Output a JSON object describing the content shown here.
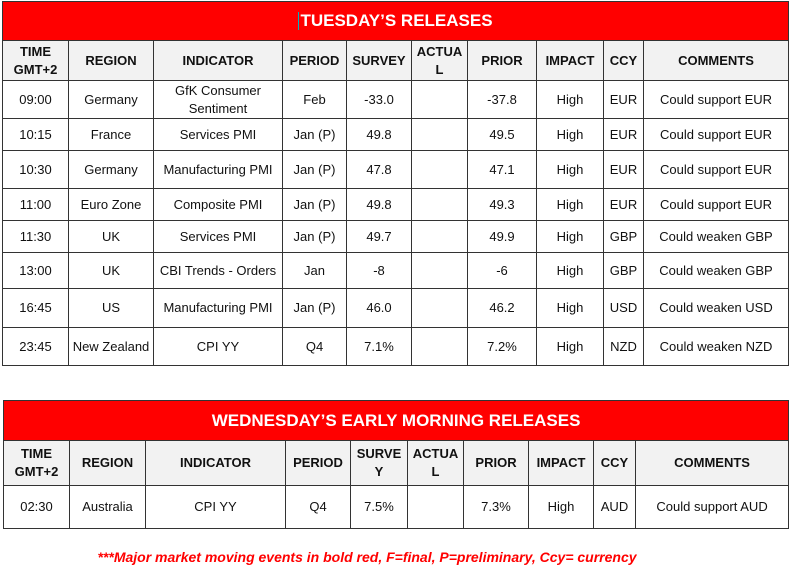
{
  "tuesday": {
    "title": "TUESDAY’S RELEASES",
    "headers": [
      "TIME GMT+2",
      "REGION",
      "INDICATOR",
      "PERIOD",
      "SURVEY",
      "ACTUAL",
      "PRIOR",
      "IMPACT",
      "CCY",
      "COMMENTS"
    ],
    "rows": [
      [
        "09:00",
        "Germany",
        "GfK Consumer Sentiment",
        "Feb",
        "-33.0",
        "",
        "-37.8",
        "High",
        "EUR",
        "Could support EUR"
      ],
      [
        "10:15",
        "France",
        "Services PMI",
        "Jan (P)",
        "49.8",
        "",
        "49.5",
        "High",
        "EUR",
        "Could support EUR"
      ],
      [
        "10:30",
        "Germany",
        "Manufacturing PMI",
        "Jan (P)",
        "47.8",
        "",
        "47.1",
        "High",
        "EUR",
        "Could support EUR"
      ],
      [
        "11:00",
        "Euro Zone",
        "Composite PMI",
        "Jan (P)",
        "49.8",
        "",
        "49.3",
        "High",
        "EUR",
        "Could support EUR"
      ],
      [
        "11:30",
        "UK",
        "Services PMI",
        "Jan (P)",
        "49.7",
        "",
        "49.9",
        "High",
        "GBP",
        "Could weaken GBP"
      ],
      [
        "13:00",
        "UK",
        "CBI Trends - Orders",
        "Jan",
        "-8",
        "",
        "-6",
        "High",
        "GBP",
        "Could weaken GBP"
      ],
      [
        "16:45",
        "US",
        "Manufacturing PMI",
        "Jan (P)",
        "46.0",
        "",
        "46.2",
        "High",
        "USD",
        "Could weaken USD"
      ],
      [
        "23:45",
        "New Zealand",
        "CPI YY",
        "Q4",
        "7.1%",
        "",
        "7.2%",
        "High",
        "NZD",
        "Could weaken NZD"
      ]
    ]
  },
  "wednesday": {
    "title": "WEDNESDAY’S EARLY MORNING RELEASES",
    "headers": [
      "TIME GMT+2",
      "REGION",
      "INDICATOR",
      "PERIOD",
      "SURVEY",
      "ACTUAL",
      "PRIOR",
      "IMPACT",
      "CCY",
      "COMMENTS"
    ],
    "rows": [
      [
        "02:30",
        "Australia",
        "CPI YY",
        "Q4",
        "7.5%",
        "",
        "7.3%",
        "High",
        "AUD",
        "Could support AUD"
      ]
    ]
  },
  "footnote": "***Major market moving events in bold red, F=final, P=preliminary, Ccy= currency",
  "colors": {
    "title_bg": "#ff0000",
    "header_bg": "#f2f2f2",
    "footnote": "#ff0000"
  }
}
